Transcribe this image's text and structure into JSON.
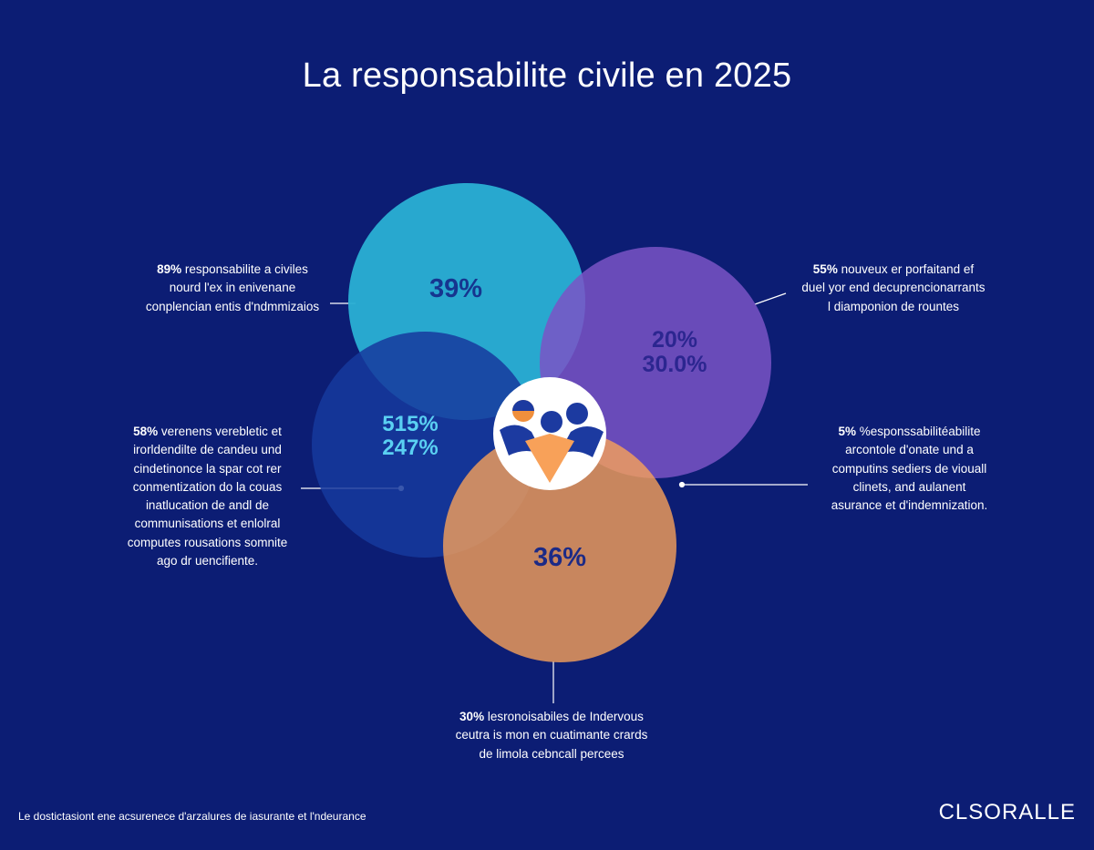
{
  "title": "La responsabilite civile en 2025",
  "circles": {
    "cyan": {
      "value": "39%",
      "color": "#2aaed3"
    },
    "purple": {
      "value_1": "20%",
      "value_2": "30.0%",
      "color": "#7a54c6"
    },
    "blue": {
      "value_1": "515%",
      "value_2": "247%",
      "color": "#16399e"
    },
    "orange": {
      "value": "36%",
      "color": "#f8a159"
    }
  },
  "callouts": {
    "top_left": {
      "lines": [
        "89% responsabilite a civiles",
        "nourd l'ex in enivenane",
        "conplencian entis d'ndmmizaios"
      ]
    },
    "top_right": {
      "lines": [
        "55% nouveux er porfaitand ef",
        "duel yor end decuprencionarrants",
        "l diamponion de rountes"
      ]
    },
    "left": {
      "lines": [
        "58% verenens verebletic et",
        "irorldendilte de candeu und",
        "cindetinonce la spar cot rer",
        "conmentization do la couas",
        "inatlucation de andl de",
        "communisations et enlolral",
        "computes rousations somnite",
        "ago dr uencifiente."
      ]
    },
    "right": {
      "lines": [
        "5% %esponssabilitéabilite",
        "arcontole d'onate und a",
        "computins sediers de viouall",
        "clinets, and aulanent",
        "asurance et d'indemnization."
      ]
    },
    "bottom": {
      "lines": [
        "30% lesronoisabiles de Indervous",
        "ceutra is mon en cuatimante crards",
        "de limola cebncall percees"
      ]
    }
  },
  "footer": "Le dostictasiont ene acsurenece d'arzalures de iasurante et l'ndeurance",
  "brand": "CLSORALLE",
  "icon": "people-group-icon"
}
